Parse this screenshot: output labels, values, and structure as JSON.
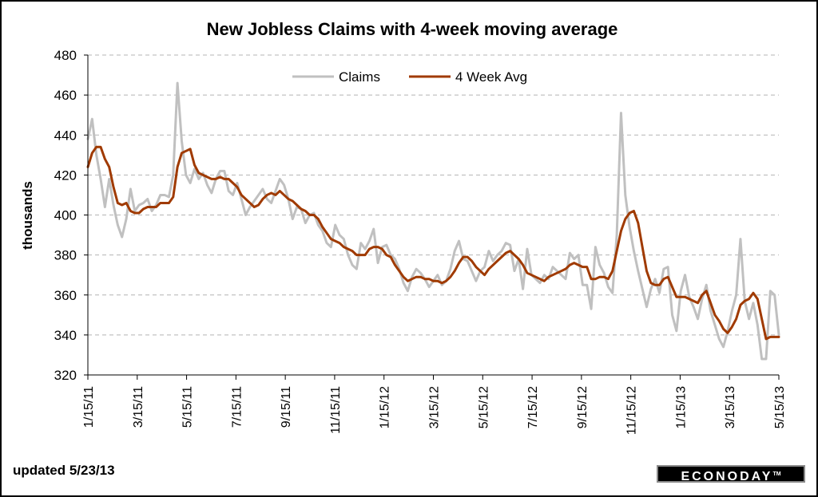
{
  "chart_data": {
    "type": "line",
    "title": "New Jobless Claims with 4-week moving average",
    "ylabel": "thousands",
    "xlabel": "",
    "ylim": [
      320,
      480
    ],
    "yticks": [
      320,
      340,
      360,
      380,
      400,
      420,
      440,
      460,
      480
    ],
    "x_tick_labels": [
      "1/15/11",
      "3/15/11",
      "5/15/11",
      "7/15/11",
      "9/15/11",
      "11/15/11",
      "1/15/12",
      "3/15/12",
      "5/15/12",
      "7/15/12",
      "9/15/12",
      "11/15/12",
      "1/15/13",
      "3/15/13",
      "5/15/13"
    ],
    "grid": "horizontal-dashed",
    "legend_position": "top-center",
    "series": [
      {
        "name": "Claims",
        "color": "#c0c0c0",
        "values": [
          438,
          448,
          430,
          418,
          404,
          418,
          405,
          395,
          389,
          398,
          413,
          402,
          405,
          406,
          408,
          402,
          405,
          410,
          410,
          409,
          420,
          466,
          437,
          420,
          416,
          423,
          418,
          421,
          415,
          411,
          418,
          422,
          422,
          412,
          410,
          416,
          408,
          400,
          404,
          407,
          410,
          413,
          408,
          406,
          412,
          418,
          415,
          408,
          398,
          404,
          403,
          396,
          400,
          401,
          395,
          392,
          386,
          384,
          395,
          390,
          388,
          380,
          375,
          373,
          386,
          383,
          387,
          393,
          376,
          384,
          385,
          380,
          378,
          373,
          366,
          362,
          369,
          373,
          371,
          368,
          364,
          367,
          370,
          365,
          367,
          373,
          382,
          387,
          378,
          377,
          372,
          367,
          372,
          374,
          382,
          377,
          380,
          382,
          386,
          385,
          372,
          378,
          363,
          383,
          370,
          368,
          366,
          370,
          368,
          374,
          372,
          370,
          368,
          381,
          378,
          380,
          365,
          365,
          353,
          384,
          375,
          371,
          364,
          361,
          390,
          451,
          410,
          394,
          382,
          372,
          363,
          354,
          363,
          368,
          361,
          373,
          374,
          350,
          342,
          362,
          370,
          359,
          354,
          348,
          358,
          365,
          352,
          345,
          338,
          334,
          342,
          352,
          360,
          388,
          357,
          348,
          356,
          345,
          328,
          328,
          362,
          360,
          340
        ],
        "line_width": 3
      },
      {
        "name": "4 Week Avg",
        "color": "#a03a00",
        "values": [
          424,
          431,
          434,
          434,
          428,
          424,
          414,
          406,
          405,
          406,
          402,
          401,
          401,
          403,
          404,
          404,
          404,
          406,
          406,
          406,
          409,
          424,
          431,
          432,
          433,
          425,
          421,
          420,
          419,
          418,
          418,
          419,
          418,
          418,
          416,
          414,
          410,
          408,
          406,
          404,
          405,
          408,
          410,
          411,
          410,
          412,
          410,
          408,
          407,
          405,
          403,
          402,
          400,
          400,
          398,
          394,
          391,
          388,
          387,
          386,
          384,
          383,
          382,
          380,
          380,
          380,
          383,
          384,
          384,
          383,
          380,
          379,
          375,
          372,
          369,
          367,
          368,
          369,
          369,
          368,
          368,
          367,
          367,
          366,
          367,
          369,
          372,
          376,
          379,
          379,
          377,
          374,
          372,
          370,
          373,
          375,
          377,
          379,
          381,
          382,
          380,
          378,
          375,
          371,
          370,
          369,
          368,
          367,
          369,
          370,
          371,
          372,
          373,
          375,
          376,
          375,
          374,
          374,
          368,
          368,
          369,
          369,
          368,
          372,
          382,
          392,
          398,
          401,
          402,
          396,
          384,
          372,
          366,
          365,
          365,
          368,
          369,
          364,
          359,
          359,
          359,
          358,
          357,
          356,
          360,
          362,
          356,
          350,
          347,
          343,
          341,
          344,
          348,
          355,
          357,
          358,
          361,
          358,
          348,
          338,
          339,
          339,
          339
        ],
        "line_width": 3
      }
    ]
  },
  "footer": {
    "updated": "updated 5/23/13",
    "brand": "ECONODAY",
    "brand_mark": "TM"
  }
}
